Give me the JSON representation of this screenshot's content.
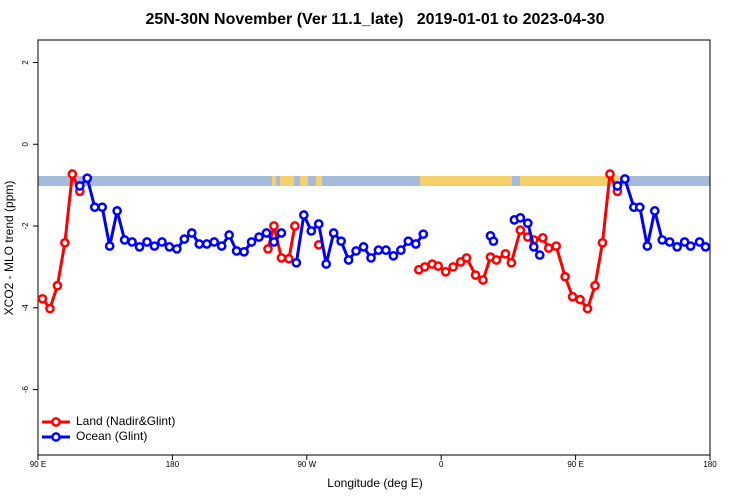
{
  "chart_data": {
    "type": "line",
    "title": "25N-30N November (Ver 11.1_late)   2019-01-01 to 2023-04-30",
    "x_label": "Longitude (deg E)",
    "y_label": "XCO2 - MLO trend (ppm)",
    "xlim": [
      90,
      540
    ],
    "ylim": [
      -7.6,
      2.55
    ],
    "xticks": [
      {
        "value": 90,
        "label": "90 E"
      },
      180,
      {
        "value": 270,
        "label": "90 W"
      },
      {
        "value": 360,
        "label": "0"
      },
      {
        "value": 450,
        "label": "90 E"
      },
      {
        "value": 540,
        "label": "180"
      }
    ],
    "yticks": [
      2,
      0,
      -2,
      -4,
      -6
    ],
    "legend": "bottom-left",
    "series": [
      {
        "name": "Land (Nadir&Glint)",
        "color": "#ff0000",
        "x": [
          93,
          98,
          103,
          108,
          113,
          118,
          null,
          244,
          248,
          253,
          258,
          262,
          null,
          278,
          null,
          345,
          349,
          354,
          358,
          363,
          368,
          373,
          377,
          383,
          388,
          393,
          397,
          403,
          407,
          413,
          418,
          422,
          428,
          432,
          437,
          443,
          448,
          453,
          458,
          463,
          468,
          473,
          478
        ],
        "values": [
          -3.78,
          -4.02,
          -3.46,
          -2.41,
          -0.73,
          -1.15,
          null,
          -2.56,
          -2.0,
          -2.78,
          -2.8,
          -2.0,
          null,
          -2.46,
          null,
          -3.07,
          -3.0,
          -2.93,
          -2.98,
          -3.12,
          -3.0,
          -2.88,
          -2.78,
          -3.2,
          -3.32,
          -2.76,
          -2.83,
          -2.68,
          -2.9,
          -2.1,
          -2.27,
          -2.34,
          -2.29,
          -2.54,
          -2.49,
          -3.24,
          -3.73,
          -3.8,
          -4.02,
          -3.46,
          -2.41,
          -0.73,
          -1.15
        ]
      },
      {
        "name": "Ocean (Glint)",
        "color": "#0000ff",
        "x": [
          118,
          123,
          128,
          133,
          138,
          143,
          148,
          153,
          158,
          163,
          168,
          173,
          178,
          183,
          188,
          193,
          198,
          203,
          208,
          213,
          218,
          223,
          228,
          233,
          238,
          243,
          248,
          253,
          null,
          263,
          268,
          273,
          278,
          283,
          288,
          293,
          298,
          303,
          308,
          313,
          318,
          323,
          328,
          333,
          338,
          343,
          348,
          null,
          393,
          395,
          null,
          409,
          413,
          418,
          422,
          426,
          null,
          478,
          483,
          489,
          493,
          498,
          503,
          508,
          513,
          518,
          523,
          527,
          533,
          537
        ],
        "values": [
          -1.02,
          -0.83,
          -1.54,
          -1.54,
          -2.49,
          -1.63,
          -2.34,
          -2.39,
          -2.51,
          -2.39,
          -2.49,
          -2.39,
          -2.51,
          -2.56,
          -2.32,
          -2.17,
          -2.44,
          -2.44,
          -2.39,
          -2.49,
          -2.22,
          -2.61,
          -2.63,
          -2.39,
          -2.27,
          -2.17,
          -2.39,
          -2.17,
          null,
          -2.9,
          -1.73,
          -2.12,
          -1.95,
          -2.93,
          -2.17,
          -2.37,
          -2.83,
          -2.61,
          -2.51,
          -2.78,
          -2.59,
          -2.59,
          -2.73,
          -2.59,
          -2.37,
          -2.44,
          -2.2,
          null,
          -2.24,
          -2.37,
          null,
          -1.85,
          -1.8,
          -1.93,
          -2.51,
          -2.71,
          null,
          -1.02,
          -0.85,
          -1.54,
          -1.54,
          -2.49,
          -1.63,
          -2.34,
          -2.39,
          -2.51,
          -2.39,
          -2.49,
          -2.39,
          -2.51
        ]
      }
    ]
  }
}
